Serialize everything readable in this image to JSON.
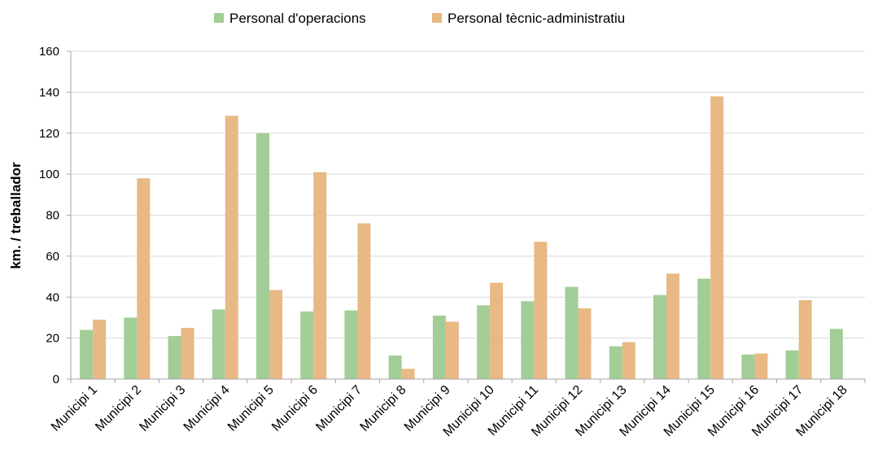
{
  "chart_data": {
    "type": "bar",
    "title": "",
    "xlabel": "",
    "ylabel": "km. / treballador",
    "ylim": [
      0,
      160
    ],
    "yticks": [
      0,
      20,
      40,
      60,
      80,
      100,
      120,
      140,
      160
    ],
    "grid": true,
    "legend_position": "top",
    "categories": [
      "Municipi 1",
      "Municipi 2",
      "Municipi 3",
      "Municipi 4",
      "Municipi 5",
      "Municipi 6",
      "Municipi 7",
      "Municipi 8",
      "Municipi 9",
      "Municipi 10",
      "Municipi 11",
      "Municipi 12",
      "Municipi 13",
      "Municipi 14",
      "Municipi 15",
      "Municipi 16",
      "Municipi 17",
      "Municipi 18"
    ],
    "series": [
      {
        "name": "Personal d'operacions",
        "color": "#a3cd96",
        "values": [
          24,
          30,
          21,
          34,
          120,
          33,
          33.5,
          11.5,
          31,
          36,
          38,
          45,
          16,
          41,
          49,
          12,
          14,
          24.5
        ]
      },
      {
        "name": "Personal tècnic-administratiu",
        "color": "#e8b985",
        "values": [
          29,
          98,
          25,
          128.5,
          43.5,
          101,
          76,
          5,
          28,
          47,
          67,
          34.5,
          18,
          51.5,
          138,
          12.5,
          38.5,
          null
        ]
      }
    ],
    "gridline_color": "#d9d9d9",
    "axis_color": "#a6a6a6",
    "text_color": "#000000"
  }
}
